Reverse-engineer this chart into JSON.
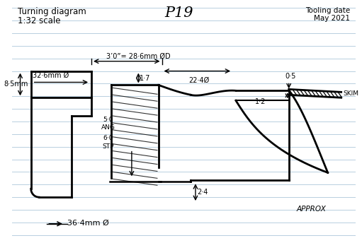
{
  "title_left1": "Turning diagram",
  "title_left2": "1:32 scale",
  "title_center": "P19",
  "title_right1": "Tooling date",
  "title_right2": "May 2021",
  "background_color": "#ffffff",
  "line_color": "#000000",
  "bg_line_color": "#b8cfe0",
  "annotations": {
    "dim1": "3’0”= 28·6mm ØD",
    "dim2": "22·4Ø",
    "dim3": "32·6mm Ø",
    "dim4": "0·5",
    "dim5": "1·2",
    "dim6": "1·7",
    "dim7": "8·5mm",
    "dim8": "5·0",
    "dim8b": "ANG",
    "dim9": "6·0",
    "dim9b": "STP",
    "dim10": "2·4",
    "dim11": "36·4mm Ø",
    "label_skim": "SKIM",
    "label_approx": "APPROX"
  }
}
